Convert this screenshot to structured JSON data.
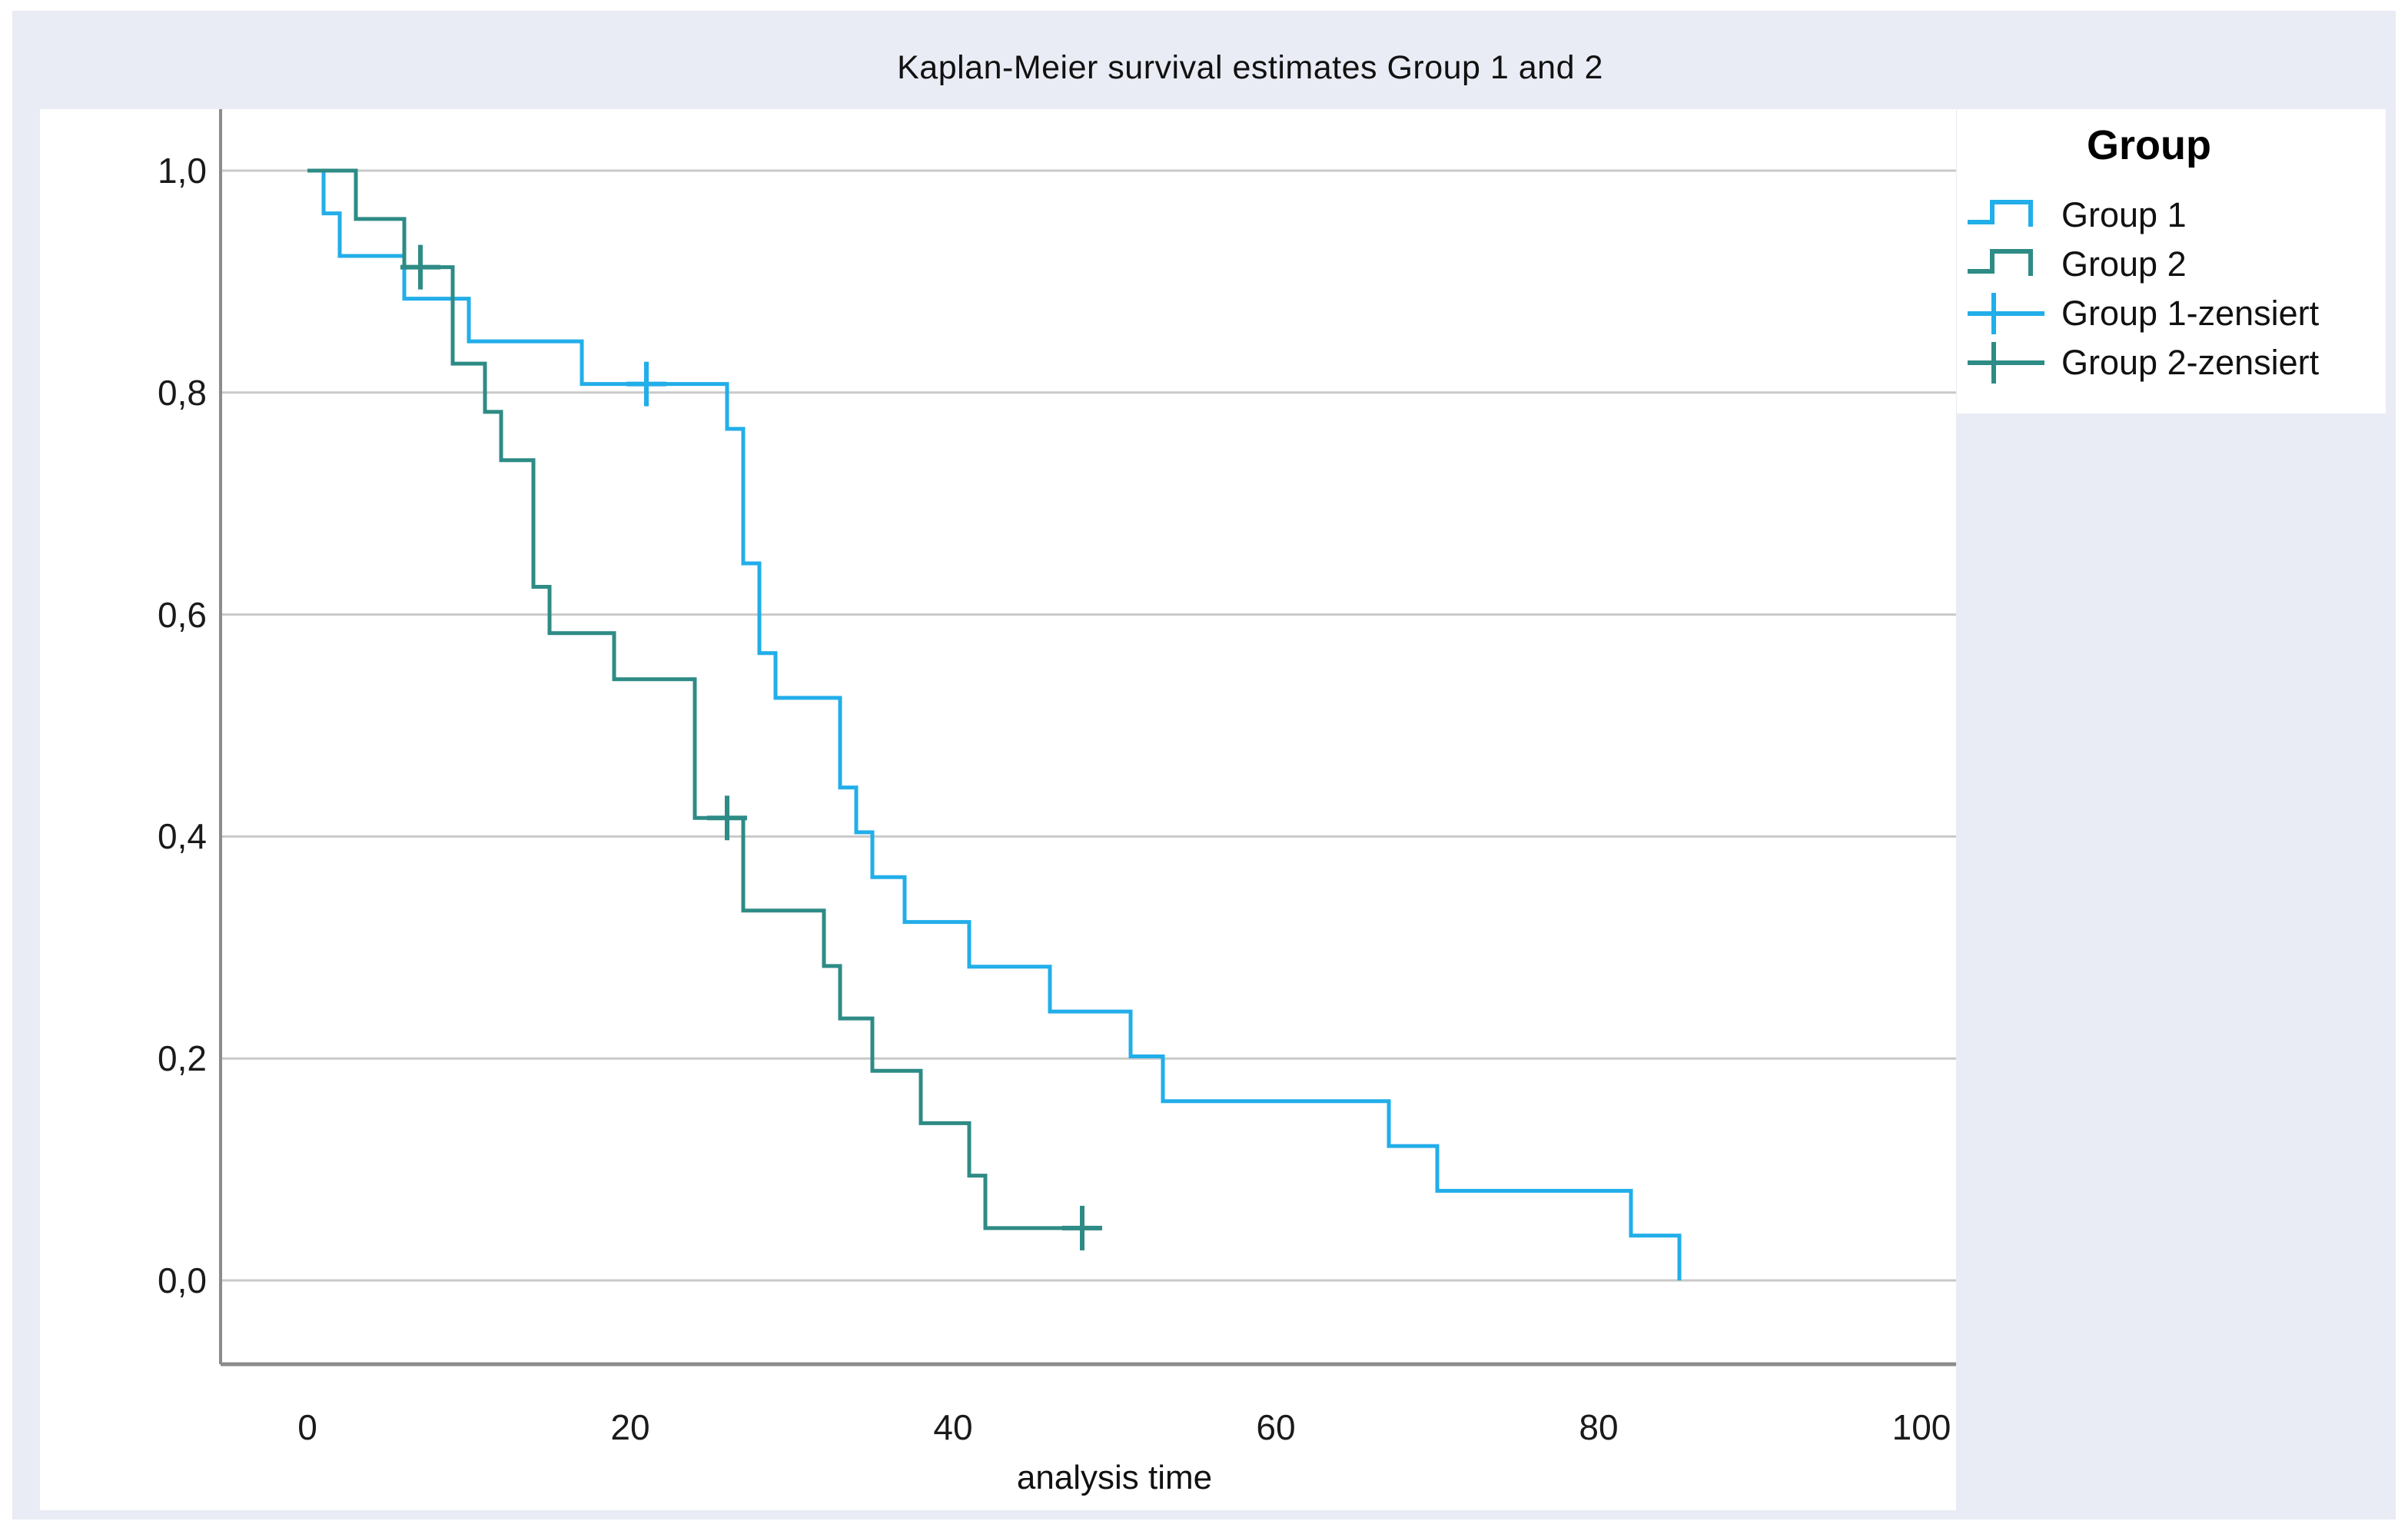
{
  "title": "Kaplan-Meier survival estimates Group 1 and 2",
  "colors": {
    "group1": "#22AEE9",
    "group2": "#2E8B85",
    "figure_background": "#E9ECF4",
    "panel_background": "#FFFFFF",
    "gridline": "#C9C9C9",
    "axis_line": "#8C8C8C",
    "text": "#111111"
  },
  "legend": {
    "title": "Group",
    "items": [
      {
        "label": "Group 1",
        "symbol": "step",
        "color_key": "group1"
      },
      {
        "label": "Group 2",
        "symbol": "step",
        "color_key": "group2"
      },
      {
        "label": "Group 1-zensiert",
        "symbol": "plus",
        "color_key": "group1"
      },
      {
        "label": "Group 2-zensiert",
        "symbol": "plus",
        "color_key": "group2"
      }
    ]
  },
  "chart_data": {
    "type": "line",
    "subtype": "kaplan-meier-step",
    "title": "Kaplan-Meier survival estimates Group 1 and 2",
    "xlabel": "analysis time",
    "ylabel": "",
    "xlim": [
      0,
      100
    ],
    "ylim": [
      0.0,
      1.0
    ],
    "grid": true,
    "legend_position": "right-top",
    "x_ticks": [
      {
        "value": 0,
        "label": "0"
      },
      {
        "value": 20,
        "label": "20"
      },
      {
        "value": 40,
        "label": "40"
      },
      {
        "value": 60,
        "label": "60"
      },
      {
        "value": 80,
        "label": "80"
      },
      {
        "value": 100,
        "label": "100"
      }
    ],
    "y_ticks": [
      {
        "value": 1.0,
        "label": "1,0"
      },
      {
        "value": 0.8,
        "label": "0,8"
      },
      {
        "value": 0.6,
        "label": "0,6"
      },
      {
        "value": 0.4,
        "label": "0,4"
      },
      {
        "value": 0.2,
        "label": "0,2"
      },
      {
        "value": 0.0,
        "label": "0,0"
      }
    ],
    "series": [
      {
        "name": "Group 1",
        "color_key": "group1",
        "steps": [
          [
            0,
            1.0
          ],
          [
            1,
            0.9615
          ],
          [
            2,
            0.9231
          ],
          [
            6,
            0.8846
          ],
          [
            10,
            0.8462
          ],
          [
            17,
            0.8077
          ],
          [
            26,
            0.7673
          ],
          [
            27,
            0.6461
          ],
          [
            28,
            0.5653
          ],
          [
            29,
            0.5249
          ],
          [
            33,
            0.4442
          ],
          [
            34,
            0.4038
          ],
          [
            35,
            0.3634
          ],
          [
            37,
            0.323
          ],
          [
            41,
            0.2827
          ],
          [
            46,
            0.2423
          ],
          [
            51,
            0.2019
          ],
          [
            53,
            0.1615
          ],
          [
            67,
            0.1211
          ],
          [
            70,
            0.0808
          ],
          [
            82,
            0.0404
          ],
          [
            85,
            0.0
          ]
        ],
        "end_time": 85,
        "censored": [
          [
            21,
            0.8077
          ]
        ]
      },
      {
        "name": "Group 2",
        "color_key": "group2",
        "steps": [
          [
            0,
            1.0
          ],
          [
            3,
            0.9565
          ],
          [
            6,
            0.913
          ],
          [
            9,
            0.8261
          ],
          [
            11,
            0.7826
          ],
          [
            12,
            0.7391
          ],
          [
            14,
            0.625
          ],
          [
            15,
            0.5833
          ],
          [
            19,
            0.5417
          ],
          [
            24,
            0.4167
          ],
          [
            27,
            0.3333
          ],
          [
            32,
            0.2833
          ],
          [
            33,
            0.2361
          ],
          [
            35,
            0.1889
          ],
          [
            38,
            0.1417
          ],
          [
            41,
            0.0944
          ],
          [
            42,
            0.0472
          ]
        ],
        "end_time": 48,
        "censored": [
          [
            7,
            0.913
          ],
          [
            26,
            0.4167
          ],
          [
            48,
            0.0472
          ]
        ]
      }
    ]
  }
}
